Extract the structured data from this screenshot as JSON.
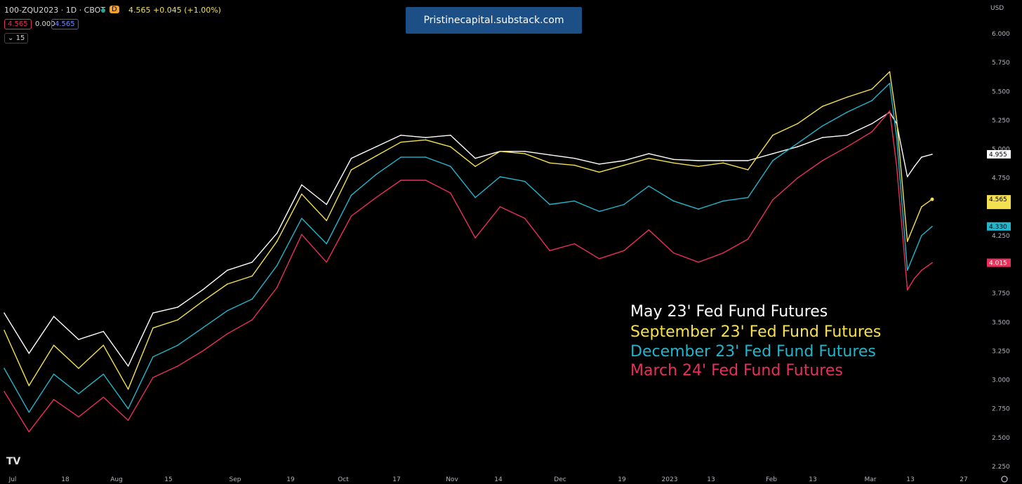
{
  "header": {
    "symbol": "100-ZQU2023 · 1D · CBOT",
    "interval_badge": "D",
    "quote": "4.565 +0.045 (+1.00%)",
    "chip_sell": "4.565",
    "chip_spread": "0.000",
    "chip_buy": "4.565",
    "collapse_label": "15"
  },
  "watermark": "Pristinecapital.substack.com",
  "logo": "TV",
  "legend": {
    "line1": "May 23' Fed Fund Futures",
    "line2": "September 23' Fed Fund Futures",
    "line3": "December 23' Fed Fund Futures",
    "line4": "March 24' Fed Fund Futures"
  },
  "colors": {
    "background": "#000000",
    "may": "#ffffff",
    "september": "#f5e050",
    "december": "#22b5cc",
    "march": "#e8305a"
  },
  "chart_data": {
    "type": "line",
    "currency_label": "USD",
    "ylim": [
      2.2,
      6.1
    ],
    "yticks": [
      "6.000",
      "5.750",
      "5.500",
      "5.250",
      "5.000",
      "4.750",
      "4.500",
      "4.250",
      "4.000",
      "3.750",
      "3.500",
      "3.250",
      "3.000",
      "2.750",
      "2.500",
      "2.250"
    ],
    "xticks": [
      "Jul",
      "18",
      "Aug",
      "15",
      "Sep",
      "19",
      "Oct",
      "17",
      "Nov",
      "14",
      "Dec",
      "19",
      "2023",
      "13",
      "Feb",
      "13",
      "Mar",
      "13",
      "27"
    ],
    "x_dates": [
      "2022-07-01",
      "2022-07-08",
      "2022-07-15",
      "2022-07-22",
      "2022-07-29",
      "2022-08-05",
      "2022-08-12",
      "2022-08-19",
      "2022-08-26",
      "2022-09-02",
      "2022-09-09",
      "2022-09-16",
      "2022-09-23",
      "2022-09-30",
      "2022-10-07",
      "2022-10-14",
      "2022-10-21",
      "2022-10-28",
      "2022-11-04",
      "2022-11-11",
      "2022-11-18",
      "2022-11-25",
      "2022-12-02",
      "2022-12-09",
      "2022-12-16",
      "2022-12-23",
      "2022-12-30",
      "2023-01-06",
      "2023-01-13",
      "2023-01-20",
      "2023-01-27",
      "2023-02-03",
      "2023-02-10",
      "2023-02-17",
      "2023-02-24",
      "2023-03-03",
      "2023-03-08",
      "2023-03-10",
      "2023-03-13",
      "2023-03-15",
      "2023-03-17",
      "2023-03-20"
    ],
    "series": [
      {
        "name": "May 23' Fed Fund Futures",
        "color": "#ffffff",
        "last_label": "4.955",
        "values": [
          3.58,
          3.23,
          3.55,
          3.35,
          3.42,
          3.12,
          3.58,
          3.63,
          3.78,
          3.95,
          4.02,
          4.27,
          4.69,
          4.52,
          4.92,
          5.02,
          5.12,
          5.1,
          5.12,
          4.92,
          4.98,
          4.98,
          4.95,
          4.92,
          4.87,
          4.9,
          4.96,
          4.91,
          4.9,
          4.9,
          4.9,
          4.96,
          5.02,
          5.1,
          5.12,
          5.22,
          5.32,
          5.22,
          4.76,
          4.85,
          4.93,
          4.955
        ]
      },
      {
        "name": "September 23' Fed Fund Futures",
        "color": "#f5e050",
        "last_label": "4.565",
        "values": [
          3.43,
          2.95,
          3.3,
          3.1,
          3.3,
          2.92,
          3.45,
          3.52,
          3.68,
          3.83,
          3.9,
          4.2,
          4.61,
          4.38,
          4.82,
          4.94,
          5.06,
          5.08,
          5.02,
          4.85,
          4.98,
          4.96,
          4.88,
          4.86,
          4.8,
          4.86,
          4.92,
          4.88,
          4.85,
          4.88,
          4.82,
          5.12,
          5.22,
          5.37,
          5.45,
          5.52,
          5.67,
          5.25,
          4.2,
          4.35,
          4.5,
          4.565
        ]
      },
      {
        "name": "December 23' Fed Fund Futures",
        "color": "#22b5cc",
        "last_label": "4.330",
        "values": [
          3.1,
          2.72,
          3.05,
          2.88,
          3.05,
          2.75,
          3.2,
          3.3,
          3.45,
          3.6,
          3.7,
          3.99,
          4.4,
          4.18,
          4.6,
          4.78,
          4.93,
          4.93,
          4.85,
          4.58,
          4.76,
          4.72,
          4.52,
          4.55,
          4.46,
          4.52,
          4.68,
          4.55,
          4.48,
          4.55,
          4.58,
          4.9,
          5.05,
          5.2,
          5.32,
          5.42,
          5.57,
          5.1,
          3.95,
          4.1,
          4.25,
          4.33
        ]
      },
      {
        "name": "March 24' Fed Fund Futures",
        "color": "#e8305a",
        "last_label": "4.015",
        "values": [
          2.9,
          2.55,
          2.83,
          2.68,
          2.85,
          2.65,
          3.02,
          3.12,
          3.25,
          3.4,
          3.52,
          3.8,
          4.26,
          4.02,
          4.42,
          4.58,
          4.73,
          4.73,
          4.62,
          4.23,
          4.5,
          4.4,
          4.12,
          4.18,
          4.05,
          4.12,
          4.3,
          4.1,
          4.02,
          4.1,
          4.22,
          4.56,
          4.75,
          4.9,
          5.02,
          5.15,
          5.33,
          4.85,
          3.78,
          3.88,
          3.95,
          4.015
        ]
      }
    ]
  }
}
